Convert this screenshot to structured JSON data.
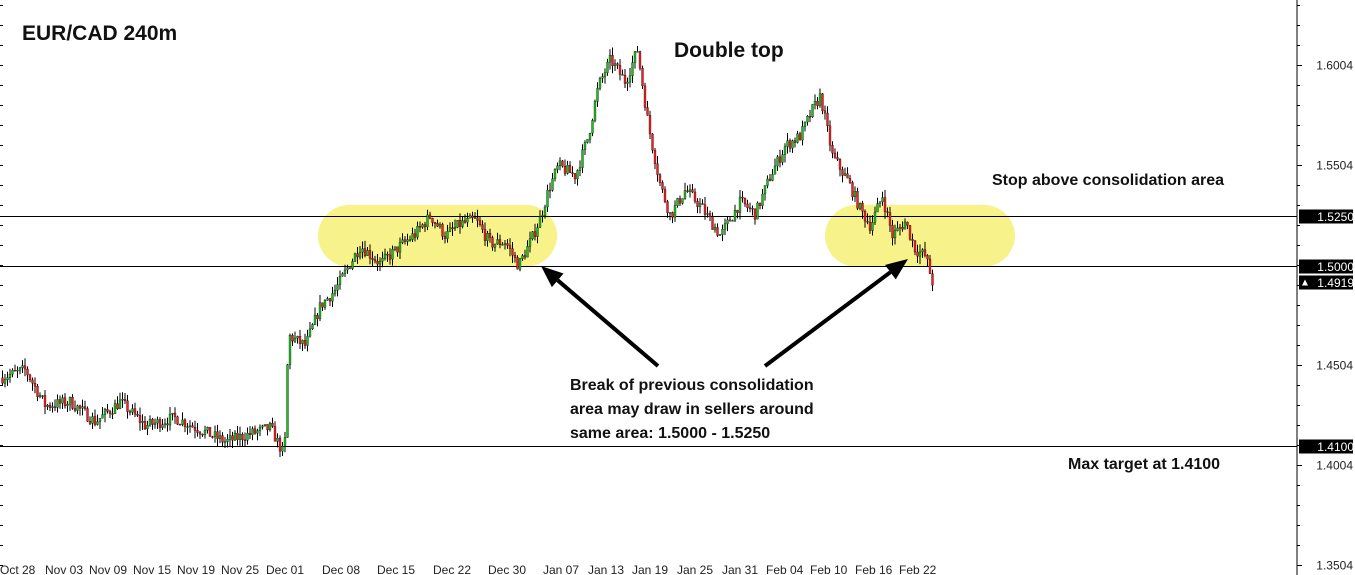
{
  "chart_data": {
    "type": "candlestick",
    "title": "EUR/CAD 240m",
    "ylim": [
      1.35,
      1.625
    ],
    "yticks": [
      1.3504,
      1.4004,
      1.4504,
      1.5004,
      1.5504,
      1.6004
    ],
    "ytick_labels": [
      "1.3504",
      "1.4004",
      "1.4504",
      "1.5004",
      "1.5504",
      "1.6004"
    ],
    "x_labels": [
      "Oct 28",
      "Nov 03",
      "Nov 09",
      "Nov 15",
      "Nov 19",
      "Nov 25",
      "Dec 01",
      "Dec 08",
      "Dec 15",
      "Dec 22",
      "Dec 30",
      "Jan 07",
      "Jan 13",
      "Jan 19",
      "Jan 25",
      "Jan 31",
      "Feb 04",
      "Feb 10",
      "Feb 16",
      "Feb 22"
    ],
    "grid": false,
    "price_path": [
      [
        0,
        1.444
      ],
      [
        25,
        1.448
      ],
      [
        45,
        1.43
      ],
      [
        70,
        1.432
      ],
      [
        95,
        1.422
      ],
      [
        120,
        1.432
      ],
      [
        145,
        1.42
      ],
      [
        175,
        1.424
      ],
      [
        200,
        1.418
      ],
      [
        225,
        1.412
      ],
      [
        250,
        1.416
      ],
      [
        270,
        1.419
      ],
      [
        284,
        1.405
      ],
      [
        288,
        1.465
      ],
      [
        305,
        1.46
      ],
      [
        320,
        1.48
      ],
      [
        335,
        1.488
      ],
      [
        345,
        1.497
      ],
      [
        360,
        1.51
      ],
      [
        380,
        1.501
      ],
      [
        400,
        1.51
      ],
      [
        415,
        1.516
      ],
      [
        430,
        1.525
      ],
      [
        445,
        1.515
      ],
      [
        460,
        1.521
      ],
      [
        475,
        1.523
      ],
      [
        490,
        1.511
      ],
      [
        505,
        1.512
      ],
      [
        518,
        1.5
      ],
      [
        530,
        1.512
      ],
      [
        540,
        1.524
      ],
      [
        548,
        1.538
      ],
      [
        558,
        1.55
      ],
      [
        575,
        1.545
      ],
      [
        588,
        1.565
      ],
      [
        598,
        1.59
      ],
      [
        610,
        1.603
      ],
      [
        625,
        1.592
      ],
      [
        637,
        1.608
      ],
      [
        648,
        1.57
      ],
      [
        660,
        1.54
      ],
      [
        670,
        1.525
      ],
      [
        685,
        1.538
      ],
      [
        700,
        1.53
      ],
      [
        720,
        1.515
      ],
      [
        740,
        1.532
      ],
      [
        755,
        1.526
      ],
      [
        770,
        1.545
      ],
      [
        785,
        1.56
      ],
      [
        800,
        1.565
      ],
      [
        812,
        1.578
      ],
      [
        820,
        1.585
      ],
      [
        832,
        1.555
      ],
      [
        848,
        1.542
      ],
      [
        860,
        1.528
      ],
      [
        870,
        1.52
      ],
      [
        882,
        1.535
      ],
      [
        892,
        1.515
      ],
      [
        905,
        1.522
      ],
      [
        915,
        1.508
      ],
      [
        925,
        1.505
      ],
      [
        932,
        1.4919
      ]
    ],
    "levels": [
      {
        "value": 1.525,
        "label": "1.5250"
      },
      {
        "value": 1.5,
        "label": "1.5000"
      },
      {
        "value": 1.41,
        "label": "1.4100"
      }
    ],
    "current_price": {
      "value": 1.4919,
      "label": "1.4919"
    },
    "annotations": {
      "double_top": "Double top",
      "stop": "Stop above consolidation area",
      "break_line1": "Break of previous consolidation",
      "break_line2": "area may draw in sellers around",
      "break_line3": "same area: 1.5000 - 1.5250",
      "target": "Max target at 1.4100"
    },
    "colors": {
      "bull": "#22bb22",
      "bear": "#ee2222",
      "wick": "#000000",
      "highlight": "#f7f38a",
      "line": "#000000",
      "tag_bg": "#000000"
    }
  }
}
